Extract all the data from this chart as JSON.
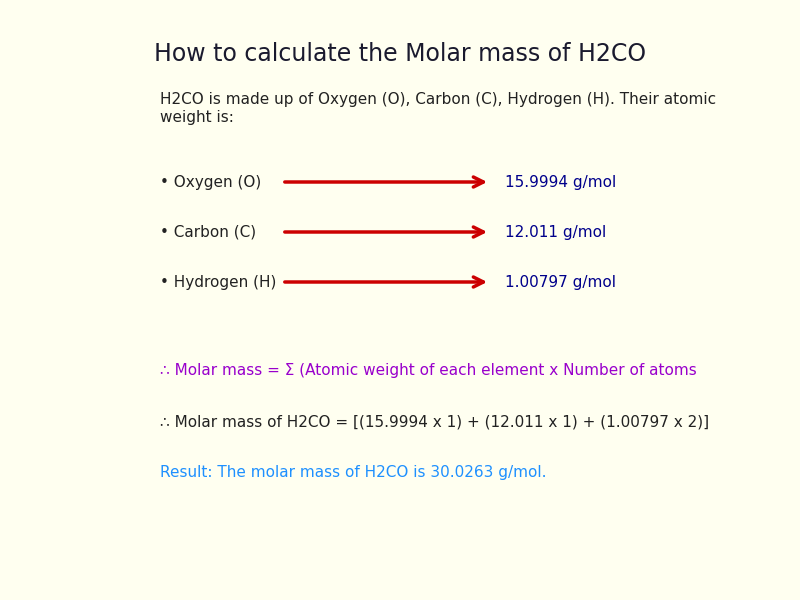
{
  "title": "How to calculate the Molar mass of H2CO",
  "background_color": "#fffff0",
  "intro_text_line1": "H2CO is made up of Oxygen (O), Carbon (C), Hydrogen (H). Their atomic",
  "intro_text_line2": "weight is:",
  "elements": [
    {
      "label": "• Oxygen (O)",
      "value": "15.9994 g/mol"
    },
    {
      "label": "• Carbon (C)",
      "value": "12.011 g/mol"
    },
    {
      "label": "• Hydrogen (H)",
      "value": "1.00797 g/mol"
    }
  ],
  "arrow_color": "#cc0000",
  "element_label_color": "#222222",
  "value_color": "#00008b",
  "formula_color": "#9900cc",
  "formula_text": "∴ Molar mass = Σ (Atomic weight of each element x Number of atoms",
  "calculation_color": "#222222",
  "calculation_text": "∴ Molar mass of H2CO = [(15.9994 x 1) + (12.011 x 1) + (1.00797 x 2)]",
  "result_color": "#1e90ff",
  "result_text": "Result: The molar mass of H2CO is 30.0263 g/mol.",
  "title_color": "#1a1a2e",
  "title_fontsize": 17,
  "text_fontsize": 11,
  "element_fontsize": 11,
  "formula_fontsize": 11
}
